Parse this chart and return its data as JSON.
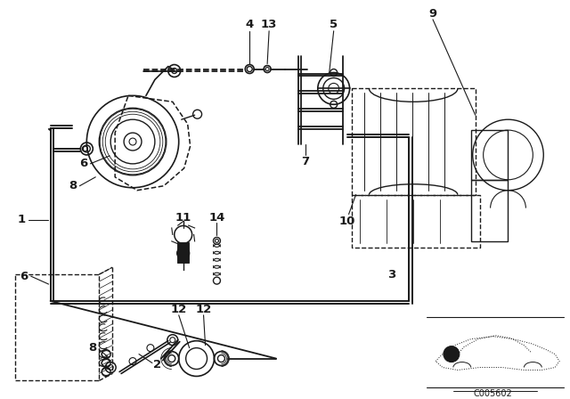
{
  "bg_color": "#ffffff",
  "line_color": "#1a1a1a",
  "diagram_code": "C005602",
  "fig_w": 6.4,
  "fig_h": 4.48,
  "dpi": 100
}
